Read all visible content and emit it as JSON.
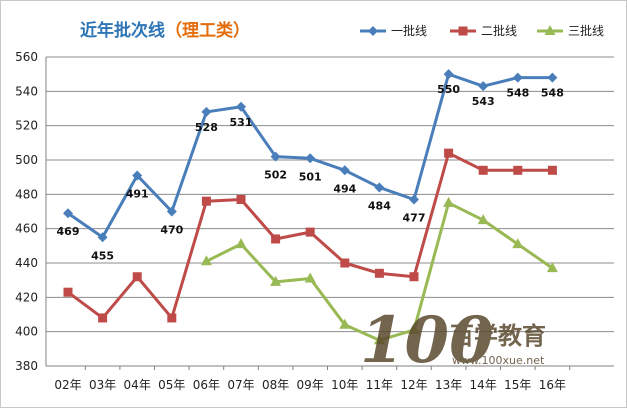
{
  "chart_data": {
    "type": "line",
    "title": "近年批次线",
    "title_suffix": "（理工类）",
    "categories": [
      "02年",
      "03年",
      "04年",
      "05年",
      "06年",
      "07年",
      "08年",
      "09年",
      "10年",
      "11年",
      "12年",
      "13年",
      "14年",
      "15年",
      "16年"
    ],
    "ylim": [
      380,
      560
    ],
    "yticks": [
      380,
      400,
      420,
      440,
      460,
      480,
      500,
      520,
      540,
      560
    ],
    "grid": true,
    "legend_position": "top-right",
    "series": [
      {
        "name": "一批线",
        "color": "#4a7ebb",
        "marker": "diamond",
        "values": [
          469,
          455,
          491,
          470,
          528,
          531,
          502,
          501,
          494,
          484,
          477,
          550,
          543,
          548,
          548
        ],
        "show_labels": true
      },
      {
        "name": "二批线",
        "color": "#be4b48",
        "marker": "square",
        "values": [
          423,
          408,
          432,
          408,
          476,
          477,
          454,
          458,
          440,
          434,
          432,
          504,
          494,
          494,
          494
        ],
        "show_labels": false
      },
      {
        "name": "三批线",
        "color": "#98b954",
        "marker": "triangle",
        "values": [
          null,
          null,
          null,
          null,
          441,
          451,
          429,
          431,
          404,
          395,
          401,
          475,
          465,
          451,
          437
        ],
        "show_labels": false
      }
    ]
  },
  "watermark": {
    "logo_text": "100",
    "site_name": "百学教育",
    "url": "www.100xue.net"
  },
  "colors": {
    "title": "#2e75b6",
    "title_suffix": "#e46c0a",
    "grid": "#8c8c8c"
  }
}
